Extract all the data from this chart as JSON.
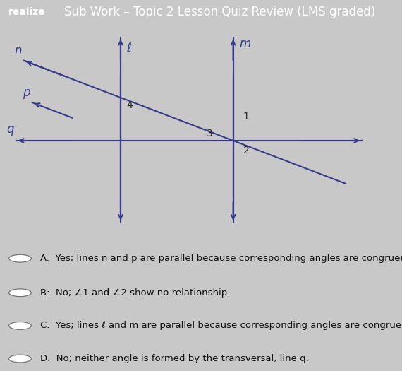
{
  "title": "Sub Work – Topic 2 Lesson Quiz Review (LMS graded)",
  "title_fontsize": 12,
  "header_label": "realize",
  "line_color": "#3a3a8c",
  "text_color": "#2a2a2a",
  "choices": [
    "A.  Yes; lines n and p are parallel because corresponding angles are congruent.",
    "B:  No; ∠1 and ∠2 show no relationship.",
    "C.  Yes; lines ℓ and m are parallel because corresponding angles are congruent.",
    "D.  No; neither angle is formed by the transversal, line q."
  ],
  "choice_fontsize": 9.5,
  "figure_bg": "#c8c8c8",
  "diagram_bg": "#dcdcdc",
  "answer_bg": "#e8e8e8",
  "header_bg": "#1e4db7",
  "lw": 1.5
}
